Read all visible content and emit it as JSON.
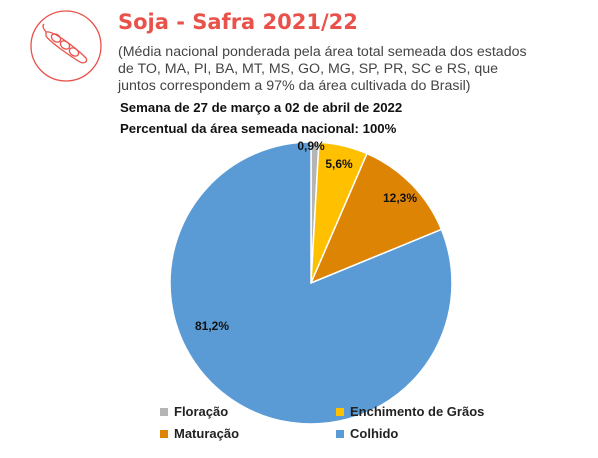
{
  "header": {
    "title": "Soja - Safra 2021/22",
    "subtitle_lines": [
      "(Média nacional ponderada pela área total semeada dos estados",
      "de TO, MA, PI, BA, MT, MS, GO, MG, SP, PR, SC e RS, que",
      "juntos correspondem a 97% da área cultivada do Brasil)"
    ],
    "week": "Semana de 27 de março a 02 de abril de 2022",
    "percent_sown": "Percentual da área semeada nacional: 100%"
  },
  "logo": {
    "icon": "soybean-pod-icon",
    "color": "#e8524a"
  },
  "chart_data": {
    "type": "pie",
    "categories": [
      "Floração",
      "Enchimento de Grãos",
      "Maturação",
      "Colhido"
    ],
    "values": [
      0.9,
      5.6,
      12.3,
      81.2
    ],
    "labels": [
      "0,9%",
      "5,6%",
      "12,3%",
      "81,2%"
    ],
    "colors": [
      "#b5b5b5",
      "#ffc000",
      "#de8405",
      "#5b9bd5"
    ],
    "legend_position": "bottom"
  }
}
